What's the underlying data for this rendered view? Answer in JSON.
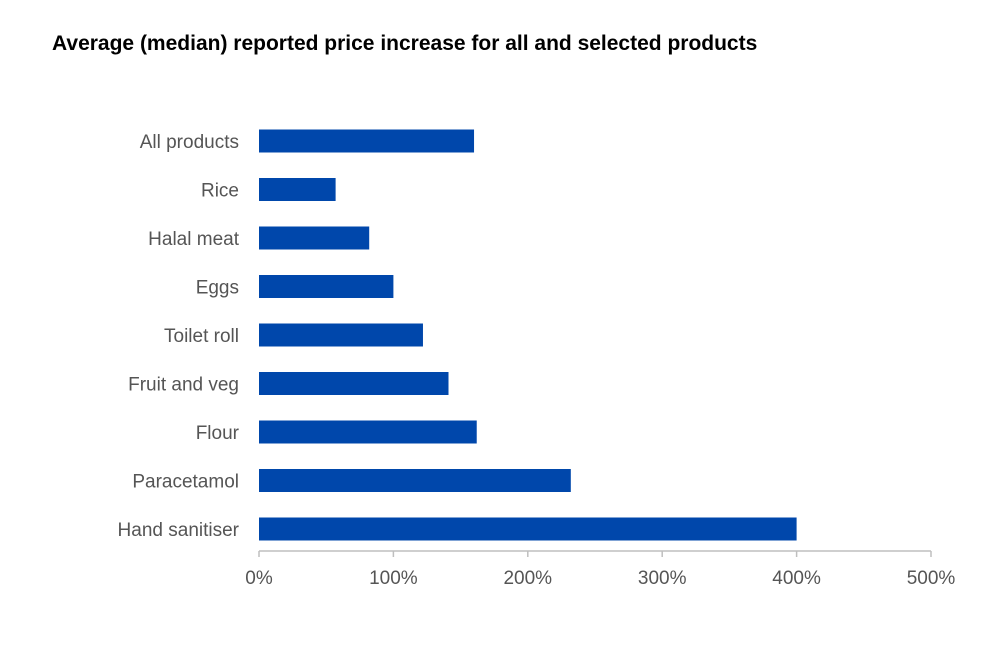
{
  "chart_data": {
    "type": "bar",
    "orientation": "horizontal",
    "title": "Average (median) reported price increase for all and selected products",
    "categories": [
      "All products",
      "Rice",
      "Halal meat",
      "Eggs",
      "Toilet roll",
      "Fruit and veg",
      "Flour",
      "Paracetamol",
      "Hand sanitiser"
    ],
    "values": [
      160,
      57,
      82,
      100,
      122,
      141,
      162,
      232,
      400
    ],
    "xlim": [
      0,
      500
    ],
    "xticks": [
      0,
      100,
      200,
      300,
      400,
      500
    ],
    "xtick_labels": [
      "0%",
      "100%",
      "200%",
      "300%",
      "400%",
      "500%"
    ],
    "bar_color": "#0047AB",
    "grid": false,
    "legend": "none"
  }
}
